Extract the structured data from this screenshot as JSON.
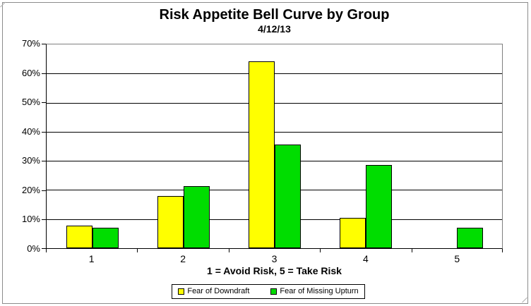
{
  "chart": {
    "title": "Risk Appetite Bell Curve by Group",
    "subtitle": "4/12/13",
    "x_axis_title": "1 = Avoid Risk, 5 = Take Risk"
  },
  "chart_data": {
    "type": "bar",
    "title": "Risk Appetite Bell Curve by Group",
    "subtitle": "4/12/13",
    "categories": [
      "1",
      "2",
      "3",
      "4",
      "5"
    ],
    "series": [
      {
        "name": "Fear of Downdraft",
        "color": "#FFFF00",
        "values": [
          7.7,
          17.9,
          64.1,
          10.3,
          0
        ]
      },
      {
        "name": "Fear of Missing Upturn",
        "color": "#00DD00",
        "values": [
          7.1,
          21.4,
          35.7,
          28.6,
          7.1
        ]
      }
    ],
    "xlabel": "1 = Avoid Risk, 5 = Take Risk",
    "ylabel": "",
    "ylim": [
      0,
      70
    ],
    "yticks": [
      "0%",
      "10%",
      "20%",
      "30%",
      "40%",
      "50%",
      "60%",
      "70%"
    ],
    "grid": true,
    "legend_position": "bottom",
    "colors": {
      "plot_border": "#808080",
      "gridline": "#000000",
      "axis": "#000000",
      "background": "#ffffff"
    }
  }
}
